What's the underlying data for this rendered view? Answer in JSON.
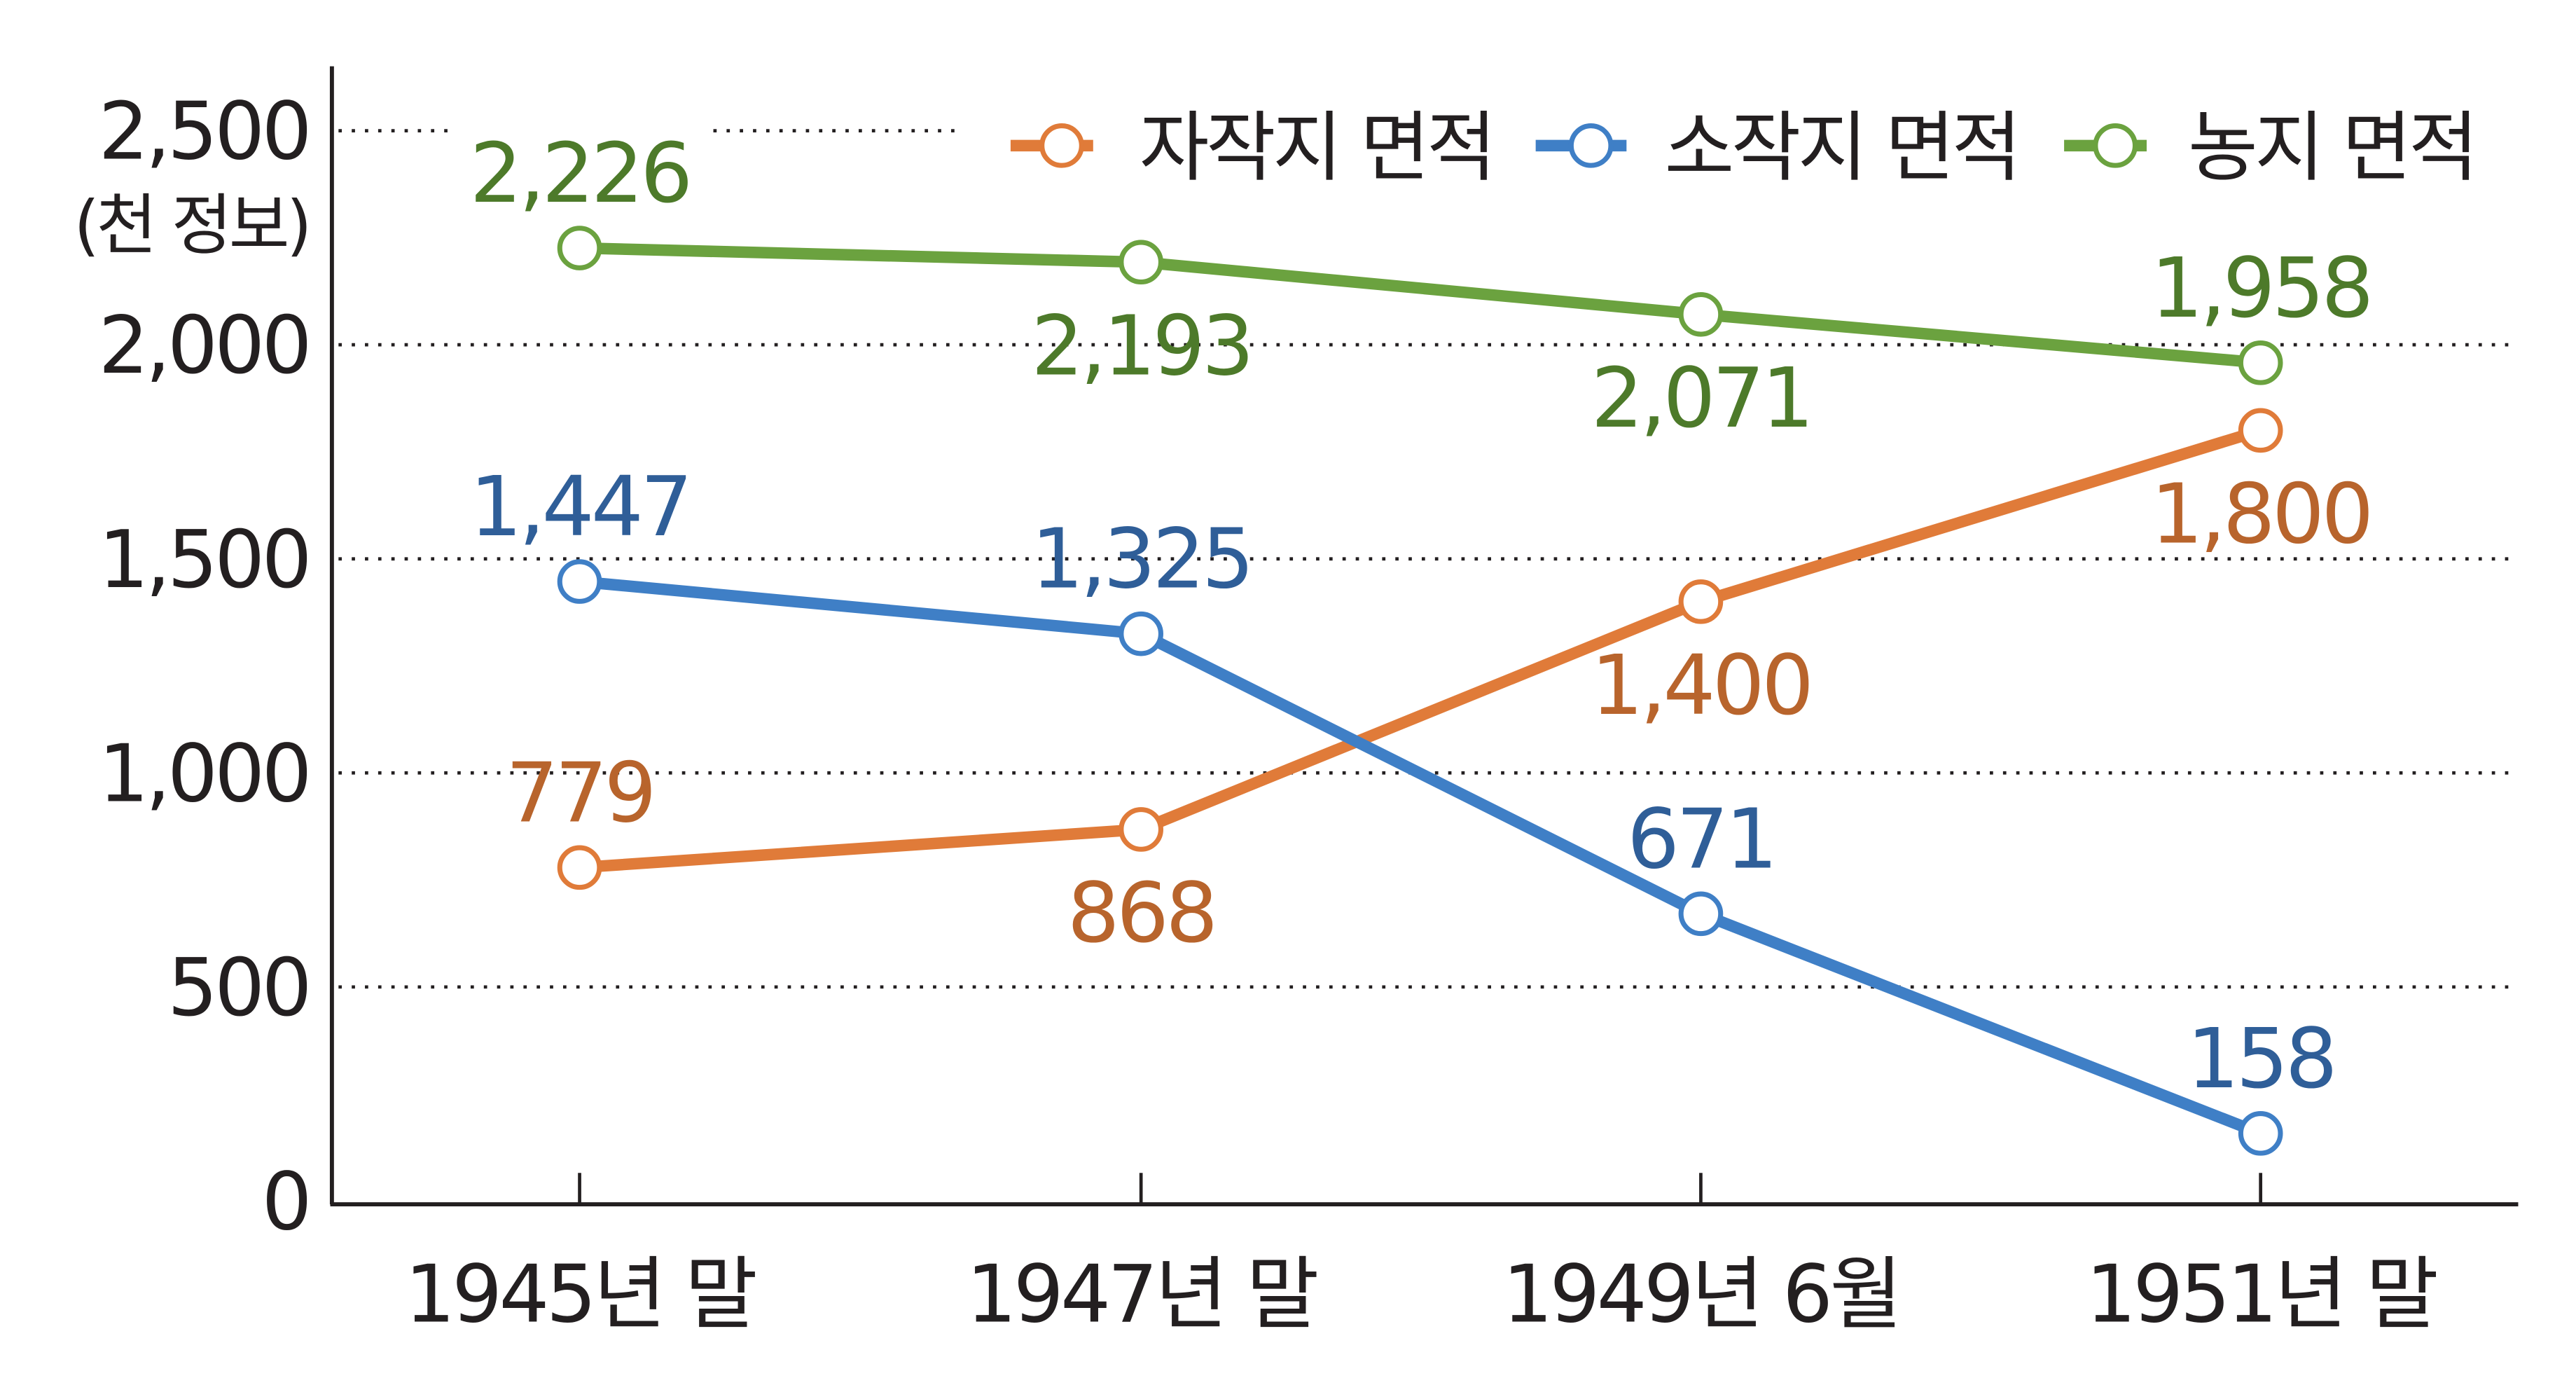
{
  "chart_data": {
    "type": "line",
    "title": "",
    "xlabel": "",
    "ylabel": "(천 정보)",
    "ylim": [
      0,
      2500
    ],
    "yticks": [
      0,
      500,
      1000,
      1500,
      2000,
      2500
    ],
    "ytick_labels": [
      "0",
      "500",
      "1,000",
      "1,500",
      "2,000",
      "2,500"
    ],
    "grid": "horizontal dotted",
    "legend": "top-right",
    "categories": [
      "1945년 말",
      "1947년 말",
      "1949년 6월",
      "1951년 말"
    ],
    "series": [
      {
        "name": "자작지 면적",
        "color": "#E07B39",
        "label_color": "#B8642C",
        "values": [
          779,
          868,
          1400,
          1800
        ],
        "labels": [
          "779",
          "868",
          "1,400",
          "1,800"
        ],
        "label_side": [
          "above",
          "below",
          "below",
          "below"
        ]
      },
      {
        "name": "소작지 면적",
        "color": "#3F7FC6",
        "label_color": "#2F5E98",
        "values": [
          1447,
          1325,
          671,
          158
        ],
        "labels": [
          "1,447",
          "1,325",
          "671",
          "158"
        ],
        "label_side": [
          "above",
          "above",
          "above",
          "above"
        ]
      },
      {
        "name": "농지 면적",
        "color": "#6BA23F",
        "label_color": "#4D7A2A",
        "values": [
          2226,
          2193,
          2071,
          1958
        ],
        "labels": [
          "2,226",
          "2,193",
          "2,071",
          "1,958"
        ],
        "label_side": [
          "above",
          "below",
          "below",
          "above"
        ]
      }
    ]
  }
}
